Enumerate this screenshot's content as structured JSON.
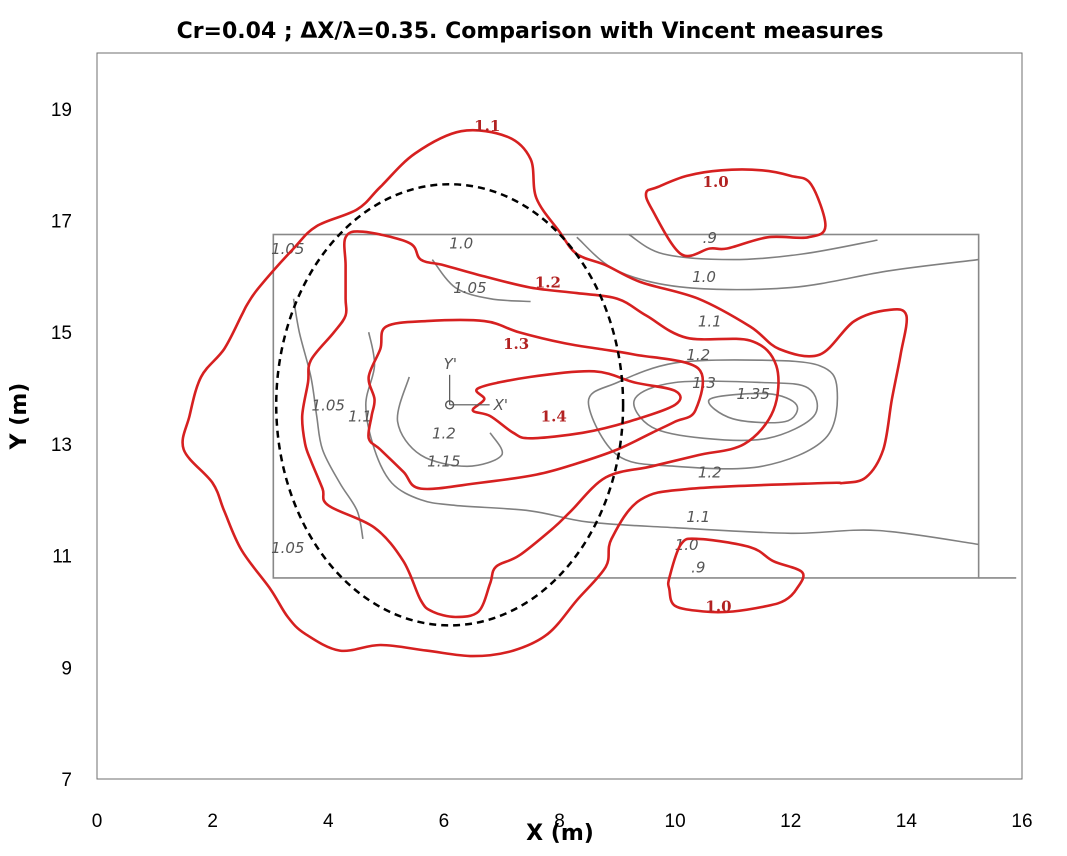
{
  "chart_data": {
    "type": "contour",
    "title": "Cr=0.04 ; ΔX/λ=0.35. Comparison with Vincent  measures",
    "xlabel": "X (m)",
    "ylabel": "Y (m)",
    "xlim": [
      0,
      16
    ],
    "ylim": [
      7,
      20
    ],
    "xticks": [
      0,
      2,
      4,
      6,
      8,
      10,
      12,
      14,
      16
    ],
    "yticks": [
      7,
      9,
      11,
      13,
      15,
      17,
      19
    ],
    "grid": false,
    "colors": {
      "computed": "#d62020",
      "measured": "#808080",
      "ellipse": "#000000",
      "frame": "#888888"
    },
    "measured_domain": {
      "x": [
        3.05,
        15.25
      ],
      "y": [
        10.6,
        16.75
      ]
    },
    "shoal_ellipse": {
      "center": [
        6.1,
        13.7
      ],
      "semi_axis_x": 3.0,
      "semi_axis_y": 3.95,
      "style": "dashed"
    },
    "computed_contours": [
      {
        "level": "1.1",
        "label_at": [
          6.75,
          18.6
        ],
        "points": [
          [
            4.5,
            17.2
          ],
          [
            4.9,
            17.6
          ],
          [
            5.5,
            18.2
          ],
          [
            6.3,
            18.6
          ],
          [
            7.1,
            18.5
          ],
          [
            7.5,
            18.1
          ],
          [
            7.6,
            17.4
          ],
          [
            8.0,
            16.8
          ],
          [
            8.3,
            16.4
          ],
          [
            8.8,
            16.2
          ],
          [
            9.4,
            15.9
          ],
          [
            10.4,
            15.6
          ],
          [
            11.3,
            15.1
          ],
          [
            11.8,
            14.7
          ],
          [
            12.5,
            14.6
          ],
          [
            13.1,
            15.2
          ],
          [
            13.7,
            15.4
          ],
          [
            14.0,
            15.3
          ],
          [
            13.9,
            14.6
          ],
          [
            13.75,
            13.8
          ],
          [
            13.6,
            12.9
          ],
          [
            13.3,
            12.4
          ],
          [
            12.9,
            12.3
          ],
          [
            12.6,
            12.3
          ],
          [
            10.3,
            12.2
          ],
          [
            9.4,
            12.0
          ],
          [
            8.9,
            11.3
          ],
          [
            8.8,
            10.8
          ],
          [
            8.3,
            10.2
          ],
          [
            7.8,
            9.6
          ],
          [
            7.2,
            9.3
          ],
          [
            6.5,
            9.2
          ],
          [
            5.7,
            9.3
          ],
          [
            4.9,
            9.4
          ],
          [
            4.2,
            9.3
          ],
          [
            3.6,
            9.6
          ],
          [
            3.3,
            9.9
          ],
          [
            3.0,
            10.4
          ],
          [
            2.5,
            11.1
          ],
          [
            2.2,
            11.8
          ],
          [
            2.0,
            12.3
          ],
          [
            1.5,
            12.9
          ],
          [
            1.6,
            13.5
          ],
          [
            1.8,
            14.2
          ],
          [
            2.2,
            14.7
          ],
          [
            2.5,
            15.3
          ],
          [
            2.6,
            15.5
          ],
          [
            2.8,
            15.8
          ],
          [
            3.4,
            16.5
          ],
          [
            3.8,
            16.9
          ],
          [
            4.5,
            17.2
          ]
        ]
      },
      {
        "level": "1.2",
        "label_at": [
          7.8,
          15.8
        ],
        "points": [
          [
            4.3,
            16.7
          ],
          [
            4.6,
            16.8
          ],
          [
            5.4,
            16.6
          ],
          [
            5.6,
            16.3
          ],
          [
            6.0,
            16.2
          ],
          [
            6.7,
            16.0
          ],
          [
            7.5,
            15.8
          ],
          [
            8.3,
            15.7
          ],
          [
            9.0,
            15.6
          ],
          [
            9.5,
            15.3
          ],
          [
            10.2,
            14.9
          ],
          [
            11.3,
            14.85
          ],
          [
            11.75,
            14.4
          ],
          [
            11.7,
            13.6
          ],
          [
            11.2,
            13.0
          ],
          [
            10.4,
            12.8
          ],
          [
            9.6,
            12.6
          ],
          [
            8.8,
            12.4
          ],
          [
            8.2,
            11.8
          ],
          [
            7.9,
            11.5
          ],
          [
            7.3,
            11.0
          ],
          [
            6.9,
            10.8
          ],
          [
            6.8,
            10.5
          ],
          [
            6.6,
            10.0
          ],
          [
            6.2,
            9.9
          ],
          [
            5.8,
            10.0
          ],
          [
            5.6,
            10.2
          ],
          [
            5.3,
            10.9
          ],
          [
            4.8,
            11.5
          ],
          [
            4.0,
            11.9
          ],
          [
            3.9,
            12.2
          ],
          [
            3.7,
            12.7
          ],
          [
            3.6,
            13.0
          ],
          [
            3.55,
            13.5
          ],
          [
            3.65,
            14.1
          ],
          [
            3.7,
            14.5
          ],
          [
            4.1,
            15.0
          ],
          [
            4.3,
            15.3
          ],
          [
            4.3,
            15.6
          ],
          [
            4.3,
            16.2
          ],
          [
            4.3,
            16.7
          ]
        ]
      },
      {
        "level": "1.3",
        "label_at": [
          7.25,
          14.7
        ],
        "points": [
          [
            5.0,
            15.1
          ],
          [
            5.7,
            15.2
          ],
          [
            6.7,
            15.2
          ],
          [
            7.3,
            15.0
          ],
          [
            8.1,
            14.8
          ],
          [
            8.7,
            14.7
          ],
          [
            9.3,
            14.6
          ],
          [
            10.4,
            14.35
          ],
          [
            10.35,
            13.6
          ],
          [
            10.0,
            13.4
          ],
          [
            9.6,
            13.2
          ],
          [
            9.0,
            12.9
          ],
          [
            8.3,
            12.65
          ],
          [
            7.6,
            12.45
          ],
          [
            6.6,
            12.3
          ],
          [
            5.6,
            12.2
          ],
          [
            5.3,
            12.5
          ],
          [
            4.9,
            12.9
          ],
          [
            4.7,
            13.1
          ],
          [
            4.75,
            13.5
          ],
          [
            4.8,
            13.8
          ],
          [
            4.7,
            14.2
          ],
          [
            4.9,
            14.7
          ],
          [
            5.0,
            15.1
          ]
        ]
      },
      {
        "level": "1.4",
        "label_at": [
          7.9,
          13.4
        ],
        "points": [
          [
            6.6,
            14.0
          ],
          [
            7.5,
            14.2
          ],
          [
            8.6,
            14.3
          ],
          [
            9.3,
            14.1
          ],
          [
            10.0,
            13.95
          ],
          [
            10.0,
            13.7
          ],
          [
            9.2,
            13.4
          ],
          [
            8.4,
            13.2
          ],
          [
            7.5,
            13.1
          ],
          [
            7.2,
            13.2
          ],
          [
            6.8,
            13.5
          ],
          [
            6.5,
            13.6
          ],
          [
            6.7,
            13.8
          ],
          [
            6.6,
            14.0
          ]
        ]
      },
      {
        "level": "1.0",
        "label_at": [
          10.7,
          17.6
        ],
        "points": [
          [
            9.5,
            17.5
          ],
          [
            9.7,
            17.6
          ],
          [
            10.2,
            17.8
          ],
          [
            10.8,
            17.9
          ],
          [
            11.5,
            17.9
          ],
          [
            12.0,
            17.8
          ],
          [
            12.35,
            17.65
          ],
          [
            12.6,
            16.9
          ],
          [
            12.3,
            16.7
          ],
          [
            11.6,
            16.7
          ],
          [
            10.9,
            16.5
          ],
          [
            10.6,
            16.5
          ],
          [
            10.1,
            16.4
          ],
          [
            9.6,
            17.2
          ],
          [
            9.5,
            17.5
          ]
        ]
      },
      {
        "level": "1.0",
        "label_at": [
          10.75,
          10.0
        ],
        "points": [
          [
            9.9,
            10.6
          ],
          [
            10.1,
            11.2
          ],
          [
            10.4,
            11.3
          ],
          [
            11.3,
            11.15
          ],
          [
            11.7,
            10.9
          ],
          [
            12.2,
            10.7
          ],
          [
            12.1,
            10.4
          ],
          [
            11.9,
            10.2
          ],
          [
            11.6,
            10.1
          ],
          [
            11.0,
            10.0
          ],
          [
            10.5,
            10.0
          ],
          [
            10.0,
            10.1
          ],
          [
            9.9,
            10.4
          ],
          [
            9.9,
            10.6
          ]
        ]
      }
    ],
    "measured_contours": [
      {
        "level": "1.05",
        "labels_at": [
          [
            3.3,
            16.4
          ],
          [
            4.0,
            13.6
          ],
          [
            3.3,
            11.05
          ]
        ],
        "points": [
          [
            3.4,
            15.6
          ],
          [
            3.5,
            15.0
          ],
          [
            3.7,
            14.2
          ],
          [
            3.8,
            13.5
          ],
          [
            3.9,
            12.9
          ],
          [
            4.2,
            12.3
          ],
          [
            4.5,
            11.8
          ],
          [
            4.6,
            11.3
          ]
        ]
      },
      {
        "level": "1.1",
        "labels_at": [
          [
            4.55,
            13.4
          ],
          [
            10.4,
            11.6
          ],
          [
            10.6,
            15.1
          ]
        ],
        "points": [
          [
            4.7,
            15.0
          ],
          [
            4.8,
            14.4
          ],
          [
            4.65,
            13.7
          ],
          [
            4.8,
            12.9
          ],
          [
            5.1,
            12.3
          ],
          [
            5.6,
            12.0
          ],
          [
            6.2,
            11.9
          ],
          [
            7.5,
            11.8
          ],
          [
            8.5,
            11.6
          ],
          [
            10.0,
            11.5
          ],
          [
            12.0,
            11.4
          ],
          [
            13.5,
            11.45
          ],
          [
            15.25,
            11.2
          ]
        ]
      },
      {
        "level": "1.2",
        "labels_at": [
          [
            6.0,
            13.1
          ],
          [
            10.4,
            14.5
          ],
          [
            10.6,
            12.4
          ]
        ],
        "points": [
          [
            8.5,
            13.75
          ],
          [
            9.0,
            14.1
          ],
          [
            10.0,
            14.45
          ],
          [
            11.5,
            14.5
          ],
          [
            12.5,
            14.4
          ],
          [
            12.8,
            14.0
          ],
          [
            12.6,
            13.1
          ],
          [
            11.5,
            12.6
          ],
          [
            10.0,
            12.6
          ],
          [
            9.0,
            12.8
          ],
          [
            8.5,
            13.75
          ]
        ]
      },
      {
        "level": "1.3",
        "labels_at": [
          [
            10.5,
            14.0
          ]
        ],
        "points": [
          [
            9.3,
            13.8
          ],
          [
            10.0,
            14.1
          ],
          [
            11.5,
            14.1
          ],
          [
            12.3,
            14.0
          ],
          [
            12.4,
            13.5
          ],
          [
            11.6,
            13.1
          ],
          [
            10.5,
            13.1
          ],
          [
            9.6,
            13.3
          ],
          [
            9.3,
            13.8
          ]
        ]
      },
      {
        "level": "1.35",
        "labels_at": [
          [
            11.35,
            13.8
          ]
        ],
        "points": [
          [
            10.6,
            13.8
          ],
          [
            11.6,
            13.9
          ],
          [
            12.1,
            13.7
          ],
          [
            11.9,
            13.4
          ],
          [
            11.0,
            13.45
          ],
          [
            10.6,
            13.8
          ]
        ]
      },
      {
        "level": "1.15",
        "labels_at": [
          [
            6.0,
            12.6
          ]
        ],
        "points": [
          [
            5.4,
            14.2
          ],
          [
            5.2,
            13.4
          ],
          [
            5.6,
            12.8
          ],
          [
            6.4,
            12.6
          ],
          [
            7.0,
            12.8
          ],
          [
            6.8,
            13.2
          ]
        ]
      },
      {
        "level": "1.0",
        "labels_at": [
          [
            6.3,
            16.5
          ],
          [
            10.5,
            15.9
          ],
          [
            10.2,
            11.1
          ]
        ],
        "points": [
          [
            8.3,
            16.7
          ],
          [
            9.0,
            16.1
          ],
          [
            10.2,
            15.8
          ],
          [
            12.0,
            15.8
          ],
          [
            13.7,
            16.1
          ],
          [
            15.25,
            16.3
          ]
        ]
      },
      {
        "level": ".9",
        "labels_at": [
          [
            10.6,
            16.6
          ],
          [
            10.4,
            10.7
          ]
        ],
        "points": [
          [
            9.2,
            16.75
          ],
          [
            9.8,
            16.4
          ],
          [
            11.0,
            16.3
          ],
          [
            12.2,
            16.4
          ],
          [
            13.5,
            16.65
          ]
        ]
      },
      {
        "level": "1.05",
        "labels_at": [
          [
            6.45,
            15.7
          ]
        ],
        "points": [
          [
            5.8,
            16.3
          ],
          [
            6.2,
            15.8
          ],
          [
            6.8,
            15.6
          ],
          [
            7.5,
            15.55
          ]
        ]
      }
    ],
    "origin_marker": {
      "x": 6.1,
      "y": 13.7,
      "axis_labels": [
        "Y'",
        "X'"
      ]
    }
  }
}
